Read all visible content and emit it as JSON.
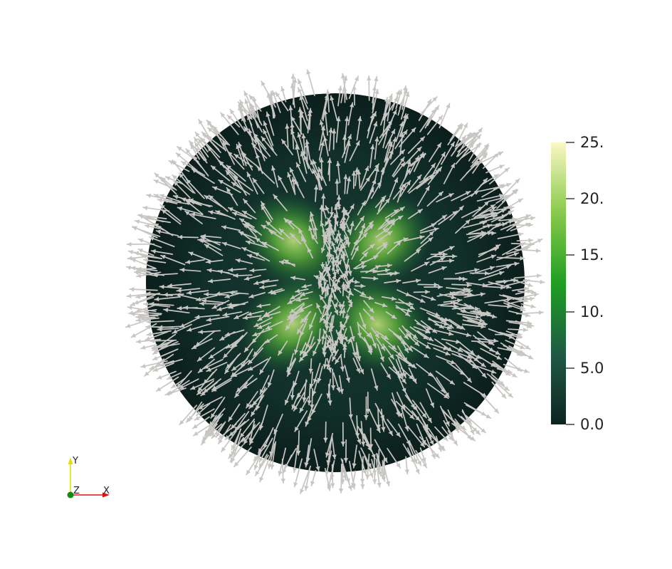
{
  "colorbar": {
    "ticks": [
      "25.",
      "20.",
      "15.",
      "10.",
      "5.0",
      "0.0"
    ],
    "range": [
      0,
      25
    ],
    "colors": [
      "#0e2321",
      "#1f5a44",
      "#1f9e23",
      "#88c94b",
      "#fbf8c4"
    ]
  },
  "axes_triad": {
    "labels": {
      "y": "Y",
      "z": "Z",
      "x": "X"
    },
    "colors": {
      "y": "#e5e000",
      "z": "#118a11",
      "x": "#e01010"
    }
  },
  "glyph_color": "#c8c6c2",
  "background": "#ffffff"
}
